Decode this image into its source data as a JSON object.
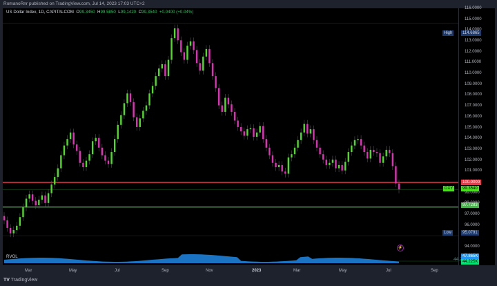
{
  "header": {
    "attribution": "RomanoRnr published on TradingView.com, Jul 14, 2023 17:03 UTC+2"
  },
  "legend": {
    "symbol": "US Dollar Index, 1D, CAPITALCOM",
    "o_label": "O",
    "o": "99.3450",
    "h_label": "H",
    "h": "99.5850",
    "l_label": "L",
    "l": "99.1420",
    "c_label": "C",
    "c": "99.3540",
    "change": "+0.0400 (+0.04%)"
  },
  "price_scale": {
    "ticks": [
      "116.0000",
      "115.0000",
      "114.0000",
      "113.0000",
      "112.0000",
      "111.0000",
      "110.0000",
      "109.0000",
      "108.0000",
      "107.0000",
      "106.0000",
      "105.0000",
      "104.0000",
      "103.0000",
      "102.0000",
      "101.0000",
      "99.0000",
      "98.0000",
      "97.0000",
      "96.0000",
      "94.0000"
    ],
    "high_label": "High",
    "high_value": "114.6865",
    "low_label": "Low",
    "low_value": "95.0791",
    "red_level": "100.0000",
    "green_level": "97.7283",
    "symbol_tag": "DXY",
    "last_price": "99.3540"
  },
  "volume": {
    "label": "RVOL",
    "value_text": "44.23k",
    "tag_blue": "47.865K",
    "tag_green": "44.225K"
  },
  "time_axis": [
    "Mar",
    "May",
    "Jul",
    "Sep",
    "Nov",
    "2023",
    "Mar",
    "May",
    "Jul",
    "Sep"
  ],
  "footer": {
    "brand": "TradingView"
  },
  "colors": {
    "up": "#4be01e",
    "down": "#e62ebd",
    "red_line": "#f23645",
    "green_line": "#4caf50",
    "tag_blue": "#2962ff",
    "tag_green": "#00e676"
  },
  "chart_data": {
    "type": "candlestick",
    "title": "US Dollar Index, 1D, CAPITALCOM",
    "ylim": [
      93.5,
      116.5
    ],
    "levels": [
      {
        "value": 100.0,
        "color": "#f23645"
      },
      {
        "value": 97.7283,
        "color": "#4caf50"
      }
    ],
    "high": 114.6865,
    "low": 95.0791,
    "closes": [
      96.5,
      95.8,
      95.3,
      95.6,
      96.0,
      96.8,
      97.7,
      98.5,
      98.9,
      98.3,
      97.9,
      98.4,
      98.8,
      98.1,
      99.0,
      99.8,
      100.5,
      101.3,
      102.5,
      103.4,
      104.0,
      104.6,
      103.5,
      102.9,
      101.8,
      101.4,
      102.0,
      102.6,
      103.8,
      104.1,
      103.2,
      102.5,
      102.0,
      101.7,
      102.8,
      104.0,
      105.3,
      106.2,
      107.3,
      108.2,
      107.4,
      106.0,
      105.1,
      105.9,
      106.6,
      107.1,
      108.2,
      108.9,
      109.8,
      110.5,
      110.9,
      109.8,
      111.3,
      113.3,
      114.2,
      113.1,
      112.0,
      111.3,
      112.6,
      113.0,
      112.2,
      111.0,
      110.3,
      111.6,
      112.3,
      111.0,
      109.8,
      108.7,
      107.1,
      106.5,
      107.8,
      107.2,
      106.5,
      105.7,
      105.1,
      104.7,
      104.3,
      104.9,
      105.0,
      104.2,
      104.6,
      105.2,
      104.0,
      103.2,
      102.5,
      101.8,
      101.4,
      101.6,
      101.0,
      100.8,
      102.3,
      102.6,
      103.2,
      103.9,
      104.6,
      105.4,
      104.5,
      104.9,
      103.9,
      103.2,
      102.6,
      102.1,
      101.6,
      101.8,
      102.1,
      101.3,
      101.6,
      101.1,
      101.9,
      102.8,
      103.4,
      103.9,
      104.0,
      103.4,
      102.8,
      102.2,
      103.0,
      102.8,
      102.7,
      101.8,
      102.4,
      103.0,
      102.7,
      101.5,
      99.9,
      99.35
    ]
  }
}
